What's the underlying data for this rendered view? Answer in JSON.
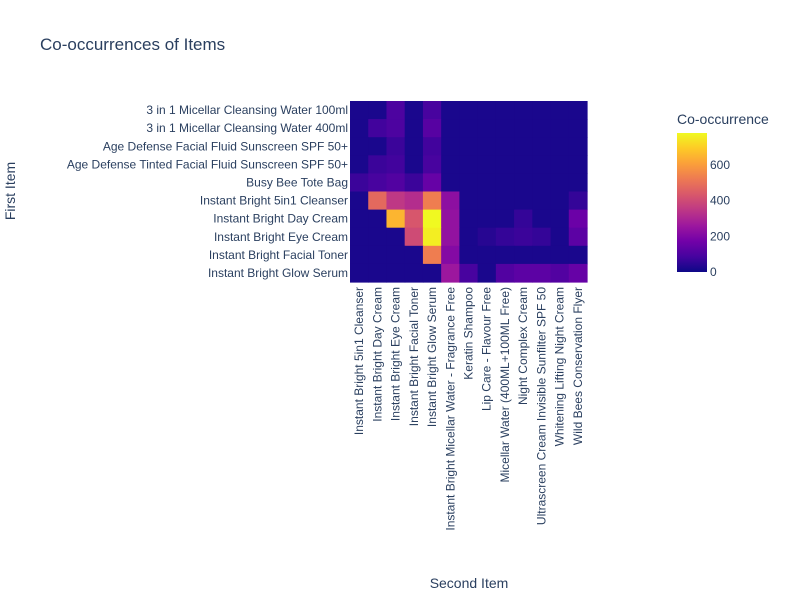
{
  "chart_data": {
    "type": "heatmap",
    "title": "Co-occurrences of Items",
    "xlabel": "Second Item",
    "ylabel": "First Item",
    "colorbar_title": "Co-occurrence",
    "colorbar_ticks": [
      0,
      200,
      400,
      600
    ],
    "zrange": [
      0,
      780
    ],
    "colorscale": [
      "#0d0887",
      "#46039f",
      "#7201a8",
      "#9c179e",
      "#bd3786",
      "#d8576b",
      "#ed7953",
      "#fb9f3a",
      "#fdca26",
      "#f0f921"
    ],
    "y_categories": [
      "3 in 1 Micellar Cleansing Water 100ml",
      "3 in 1 Micellar Cleansing Water 400ml",
      "Age Defense Facial Fluid Sunscreen SPF 50+",
      "Age Defense Tinted Facial Fluid Sunscreen SPF 50+",
      "Busy Bee Tote Bag",
      "Instant Bright 5in1 Cleanser",
      "Instant Bright Day Cream",
      "Instant Bright Eye Cream",
      "Instant Bright Facial Toner",
      "Instant Bright Glow Serum"
    ],
    "x_categories": [
      "Instant Bright 5in1 Cleanser",
      "Instant Bright Day Cream",
      "Instant Bright Eye Cream",
      "Instant Bright Facial Toner",
      "Instant Bright Glow Serum",
      "Instant Bright Micellar Water - Fragrance Free",
      "Keratin Shampoo",
      "Lip Care - Flavour Free",
      "Micellar Water (400ML+100ML Free)",
      "Night Complex Cream",
      "Ultrascreen Cream Invisible Sunfilter SPF 50",
      "Whitening Lifting Night Cream",
      "Wild Bees Conservation Flyer"
    ],
    "z": [
      [
        20,
        20,
        100,
        20,
        90,
        20,
        20,
        20,
        20,
        20,
        20,
        20,
        20
      ],
      [
        20,
        80,
        100,
        20,
        120,
        20,
        20,
        20,
        20,
        20,
        20,
        20,
        20
      ],
      [
        20,
        20,
        70,
        20,
        80,
        20,
        20,
        20,
        20,
        20,
        20,
        20,
        20
      ],
      [
        20,
        70,
        80,
        20,
        90,
        20,
        20,
        20,
        20,
        20,
        20,
        20,
        20
      ],
      [
        70,
        90,
        110,
        70,
        150,
        20,
        20,
        20,
        20,
        20,
        20,
        20,
        20
      ],
      [
        20,
        480,
        350,
        320,
        530,
        230,
        20,
        20,
        20,
        20,
        20,
        20,
        60
      ],
      [
        20,
        20,
        650,
        430,
        780,
        240,
        20,
        20,
        20,
        60,
        20,
        20,
        160
      ],
      [
        20,
        20,
        20,
        400,
        760,
        240,
        20,
        40,
        60,
        70,
        60,
        20,
        130
      ],
      [
        20,
        20,
        20,
        20,
        530,
        210,
        20,
        20,
        20,
        20,
        20,
        20,
        20
      ],
      [
        20,
        20,
        20,
        20,
        20,
        260,
        90,
        20,
        110,
        130,
        130,
        110,
        150
      ]
    ]
  }
}
